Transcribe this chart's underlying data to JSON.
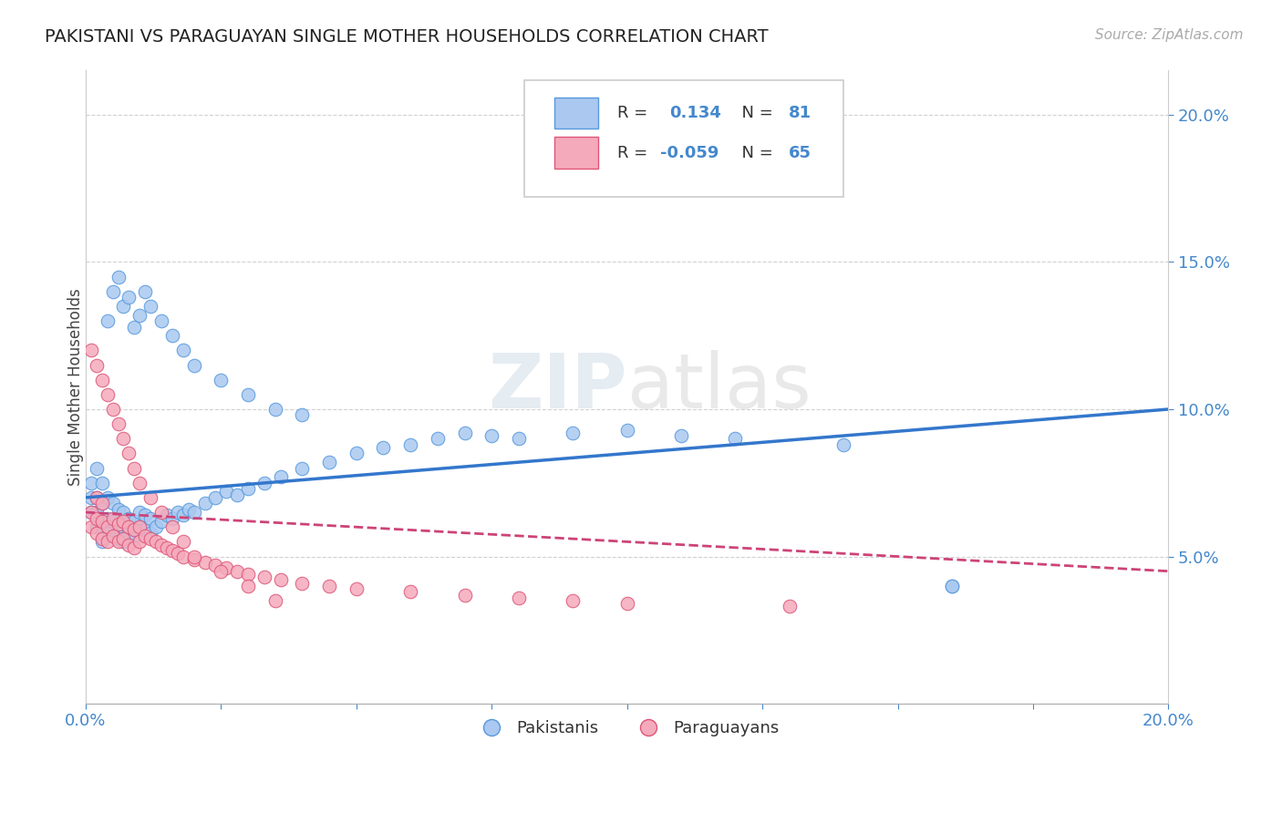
{
  "title": "PAKISTANI VS PARAGUAYAN SINGLE MOTHER HOUSEHOLDS CORRELATION CHART",
  "source": "Source: ZipAtlas.com",
  "ylabel": "Single Mother Households",
  "xlim": [
    0.0,
    0.2
  ],
  "ylim": [
    0.0,
    0.215
  ],
  "yticks": [
    0.05,
    0.1,
    0.15,
    0.2
  ],
  "ytick_labels": [
    "5.0%",
    "10.0%",
    "15.0%",
    "20.0%"
  ],
  "xtick_labels": [
    "0.0%",
    "20.0%"
  ],
  "color_pakistani_fill": "#aac8f0",
  "color_pakistani_edge": "#5599dd",
  "color_paraguayan_fill": "#f5aabb",
  "color_paraguayan_edge": "#dd5577",
  "color_line_pakistani": "#3377cc",
  "color_line_paraguayan": "#cc4477",
  "watermark": "ZIPatlas",
  "pakistani_x": [
    0.001,
    0.001,
    0.001,
    0.002,
    0.002,
    0.002,
    0.002,
    0.003,
    0.003,
    0.003,
    0.003,
    0.004,
    0.004,
    0.004,
    0.005,
    0.005,
    0.005,
    0.006,
    0.006,
    0.006,
    0.007,
    0.007,
    0.007,
    0.008,
    0.008,
    0.009,
    0.009,
    0.01,
    0.01,
    0.011,
    0.011,
    0.012,
    0.012,
    0.013,
    0.014,
    0.015,
    0.016,
    0.017,
    0.018,
    0.019,
    0.02,
    0.022,
    0.024,
    0.026,
    0.028,
    0.03,
    0.033,
    0.036,
    0.04,
    0.045,
    0.05,
    0.055,
    0.06,
    0.065,
    0.07,
    0.075,
    0.08,
    0.09,
    0.1,
    0.11,
    0.12,
    0.14,
    0.16,
    0.004,
    0.005,
    0.006,
    0.007,
    0.008,
    0.009,
    0.01,
    0.011,
    0.012,
    0.014,
    0.016,
    0.018,
    0.02,
    0.025,
    0.03,
    0.035,
    0.04,
    0.16
  ],
  "pakistani_y": [
    0.065,
    0.07,
    0.075,
    0.06,
    0.065,
    0.07,
    0.08,
    0.055,
    0.06,
    0.068,
    0.075,
    0.058,
    0.063,
    0.07,
    0.057,
    0.062,
    0.068,
    0.056,
    0.061,
    0.066,
    0.055,
    0.06,
    0.065,
    0.058,
    0.063,
    0.057,
    0.062,
    0.06,
    0.065,
    0.059,
    0.064,
    0.058,
    0.063,
    0.06,
    0.062,
    0.064,
    0.063,
    0.065,
    0.064,
    0.066,
    0.065,
    0.068,
    0.07,
    0.072,
    0.071,
    0.073,
    0.075,
    0.077,
    0.08,
    0.082,
    0.085,
    0.087,
    0.088,
    0.09,
    0.092,
    0.091,
    0.09,
    0.092,
    0.093,
    0.091,
    0.09,
    0.088,
    0.04,
    0.13,
    0.14,
    0.145,
    0.135,
    0.138,
    0.128,
    0.132,
    0.14,
    0.135,
    0.13,
    0.125,
    0.12,
    0.115,
    0.11,
    0.105,
    0.1,
    0.098,
    0.04
  ],
  "paraguayan_x": [
    0.001,
    0.001,
    0.002,
    0.002,
    0.002,
    0.003,
    0.003,
    0.003,
    0.004,
    0.004,
    0.005,
    0.005,
    0.006,
    0.006,
    0.007,
    0.007,
    0.008,
    0.008,
    0.009,
    0.009,
    0.01,
    0.01,
    0.011,
    0.012,
    0.013,
    0.014,
    0.015,
    0.016,
    0.017,
    0.018,
    0.02,
    0.022,
    0.024,
    0.026,
    0.028,
    0.03,
    0.033,
    0.036,
    0.04,
    0.045,
    0.05,
    0.06,
    0.07,
    0.08,
    0.09,
    0.1,
    0.13,
    0.001,
    0.002,
    0.003,
    0.004,
    0.005,
    0.006,
    0.007,
    0.008,
    0.009,
    0.01,
    0.012,
    0.014,
    0.016,
    0.018,
    0.02,
    0.025,
    0.03,
    0.035
  ],
  "paraguayan_y": [
    0.06,
    0.065,
    0.058,
    0.063,
    0.07,
    0.056,
    0.062,
    0.068,
    0.055,
    0.06,
    0.057,
    0.063,
    0.055,
    0.061,
    0.056,
    0.062,
    0.054,
    0.06,
    0.053,
    0.059,
    0.055,
    0.06,
    0.057,
    0.056,
    0.055,
    0.054,
    0.053,
    0.052,
    0.051,
    0.05,
    0.049,
    0.048,
    0.047,
    0.046,
    0.045,
    0.044,
    0.043,
    0.042,
    0.041,
    0.04,
    0.039,
    0.038,
    0.037,
    0.036,
    0.035,
    0.034,
    0.033,
    0.12,
    0.115,
    0.11,
    0.105,
    0.1,
    0.095,
    0.09,
    0.085,
    0.08,
    0.075,
    0.07,
    0.065,
    0.06,
    0.055,
    0.05,
    0.045,
    0.04,
    0.035
  ]
}
